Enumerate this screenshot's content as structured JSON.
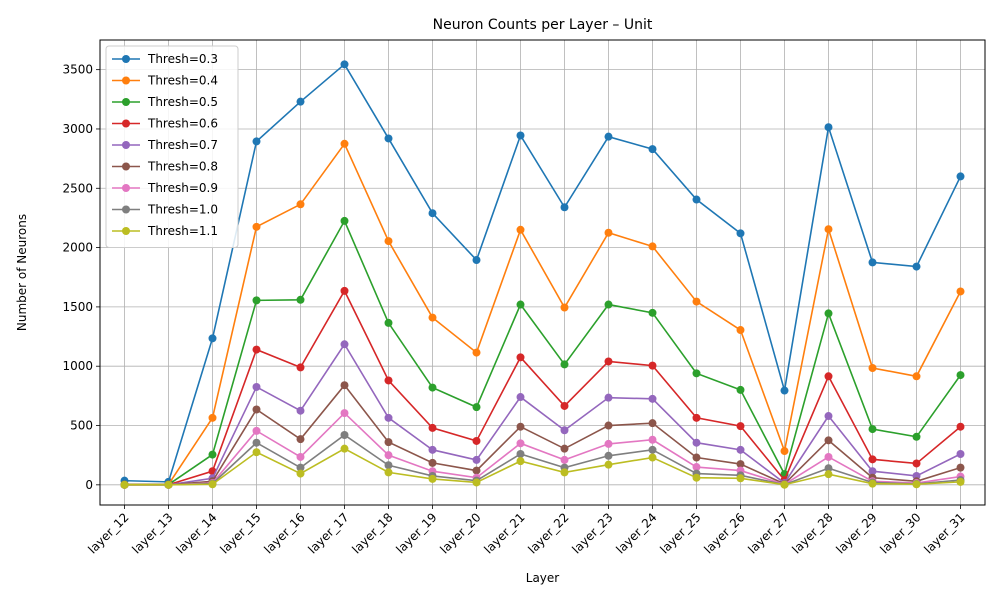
{
  "chart_data": {
    "type": "line",
    "title": "Neuron Counts per Layer – Unit",
    "xlabel": "Layer",
    "ylabel": "Number of Neurons",
    "ylim": [
      -170,
      3750
    ],
    "yticks": [
      0,
      500,
      1000,
      1500,
      2000,
      2500,
      3000,
      3500
    ],
    "grid": true,
    "legend_position": "top-left",
    "categories": [
      "layer_12",
      "layer_13",
      "layer_14",
      "layer_15",
      "layer_16",
      "layer_17",
      "layer_18",
      "layer_19",
      "layer_20",
      "layer_21",
      "layer_22",
      "layer_23",
      "layer_24",
      "layer_25",
      "layer_26",
      "layer_27",
      "layer_28",
      "layer_29",
      "layer_30",
      "layer_31"
    ],
    "series": [
      {
        "name": "Thresh=0.3",
        "color": "#1f77b4",
        "values": [
          35,
          25,
          1235,
          2895,
          3230,
          3545,
          2920,
          2290,
          1895,
          2945,
          2340,
          2935,
          2830,
          2405,
          2120,
          795,
          3015,
          1875,
          1840,
          2600
        ]
      },
      {
        "name": "Thresh=0.4",
        "color": "#ff7f0e",
        "values": [
          3,
          3,
          565,
          2175,
          2365,
          2875,
          2055,
          1410,
          1115,
          2150,
          1495,
          2125,
          2010,
          1545,
          1305,
          285,
          2155,
          985,
          915,
          1630
        ]
      },
      {
        "name": "Thresh=0.5",
        "color": "#2ca02c",
        "values": [
          2,
          2,
          255,
          1555,
          1560,
          2225,
          1365,
          820,
          655,
          1520,
          1015,
          1520,
          1450,
          940,
          800,
          90,
          1445,
          470,
          405,
          925
        ]
      },
      {
        "name": "Thresh=0.6",
        "color": "#d62728",
        "values": [
          1,
          1,
          115,
          1140,
          990,
          1635,
          880,
          480,
          370,
          1075,
          665,
          1040,
          1005,
          565,
          495,
          40,
          915,
          215,
          180,
          490
        ]
      },
      {
        "name": "Thresh=0.7",
        "color": "#9467bd",
        "values": [
          0,
          0,
          55,
          825,
          625,
          1185,
          565,
          295,
          210,
          740,
          460,
          735,
          725,
          355,
          295,
          15,
          580,
          115,
          75,
          260
        ]
      },
      {
        "name": "Thresh=0.8",
        "color": "#8c564b",
        "values": [
          0,
          0,
          30,
          635,
          385,
          840,
          360,
          185,
          120,
          490,
          305,
          500,
          520,
          230,
          175,
          8,
          375,
          60,
          30,
          145
        ]
      },
      {
        "name": "Thresh=0.9",
        "color": "#e377c2",
        "values": [
          0,
          0,
          15,
          455,
          235,
          605,
          250,
          115,
          60,
          350,
          210,
          345,
          380,
          150,
          120,
          4,
          235,
          30,
          15,
          70
        ]
      },
      {
        "name": "Thresh=1.0",
        "color": "#7f7f7f",
        "values": [
          0,
          0,
          10,
          355,
          145,
          420,
          165,
          75,
          35,
          260,
          145,
          245,
          295,
          95,
          80,
          2,
          140,
          20,
          8,
          40
        ]
      },
      {
        "name": "Thresh=1.1",
        "color": "#bcbd22",
        "values": [
          0,
          0,
          5,
          275,
          95,
          305,
          105,
          50,
          20,
          200,
          105,
          170,
          230,
          60,
          55,
          1,
          90,
          10,
          5,
          25
        ]
      }
    ]
  }
}
